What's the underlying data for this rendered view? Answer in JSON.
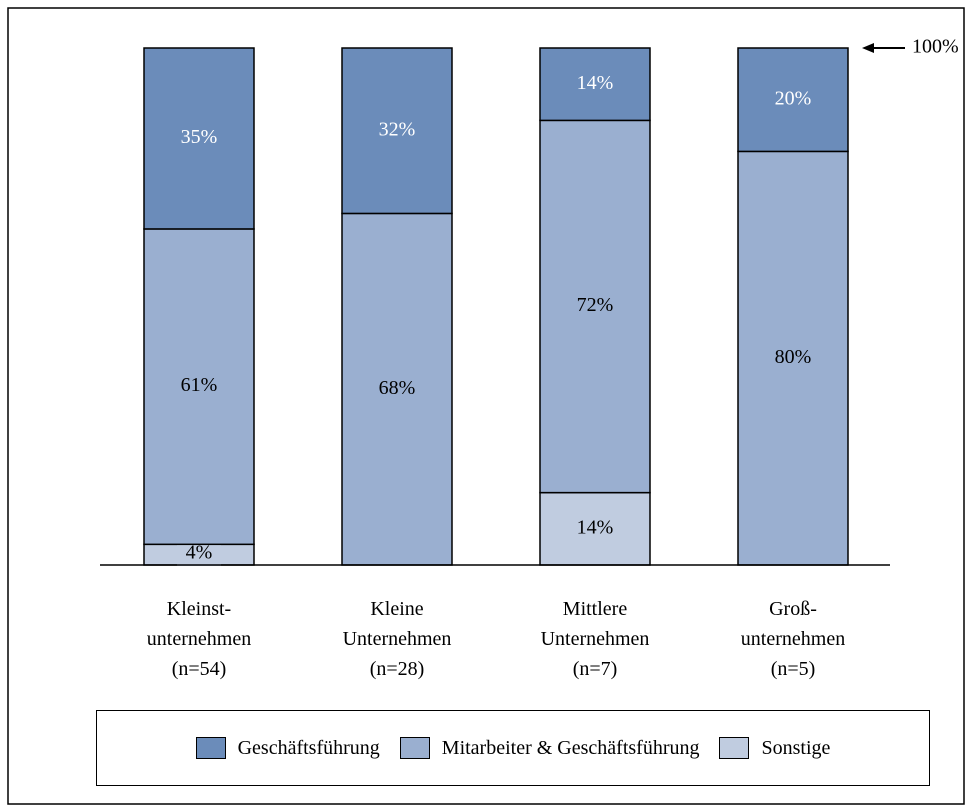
{
  "chart_data": {
    "type": "stacked_bar",
    "categories": [
      "Kleinst-\nunternehmen\n(n=54)",
      "Kleine\nUnternehmen\n(n=28)",
      "Mittlere\nUnternehmen\n(n=7)",
      "Groß-\nunternehmen\n(n=5)"
    ],
    "series": [
      {
        "name": "Geschäftsführung",
        "color": "#6b8cba",
        "label_color": "#ffffff",
        "values": [
          35,
          32,
          14,
          20
        ],
        "value_labels": [
          "35%",
          "32%",
          "14%",
          "20%"
        ]
      },
      {
        "name": "Mitarbeiter & Geschäftsführung",
        "color": "#9aafd0",
        "label_color": "#000000",
        "values": [
          61,
          68,
          72,
          80
        ],
        "value_labels": [
          "61%",
          "68%",
          "72%",
          "80%"
        ]
      },
      {
        "name": "Sonstige",
        "color": "#c0cce0",
        "label_color": "#000000",
        "values": [
          4,
          0,
          14,
          0
        ],
        "value_labels": [
          "4%",
          null,
          "14%",
          null
        ]
      }
    ],
    "ylim": [
      0,
      100
    ],
    "annotation": {
      "value": 100,
      "label": "100%"
    },
    "legend": "bottom"
  }
}
